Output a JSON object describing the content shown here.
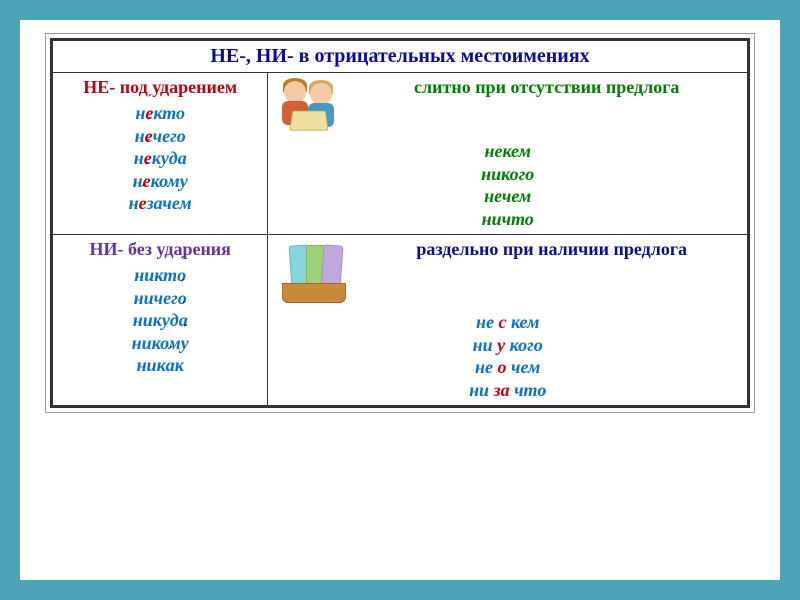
{
  "colors": {
    "page_bg": "#4ba3b5",
    "paper_bg": "#ffffff",
    "border": "#333333",
    "title": "#0b0b9b",
    "red": "#c00010",
    "green": "#008000",
    "purple": "#6a2fa0",
    "blue": "#0b0b9b",
    "ex_blue": "#0b70c7",
    "ex_green": "#008000"
  },
  "title": "НЕ-, НИ- в отрицательных местоимениях",
  "cells": {
    "tl": {
      "header": "НЕ- под ударением",
      "w1": {
        "prefix": "н",
        "stress": "е",
        "rest": "кто"
      },
      "w2": {
        "prefix": "н",
        "stress": "е",
        "rest": "чего"
      },
      "w3": {
        "prefix": "н",
        "stress": "е",
        "rest": "куда"
      },
      "w4": {
        "prefix": "н",
        "stress": "е",
        "rest": "кому"
      },
      "w5": {
        "prefix": "н",
        "stress": "е",
        "rest": "зачем"
      }
    },
    "tr": {
      "header": "слитно при отсутствии предлога",
      "w1": "некем",
      "w2": "никого",
      "w3": "нечем",
      "w4": "ничто"
    },
    "bl": {
      "header": "НИ- без ударения",
      "w1": {
        "pre": "никт",
        "stress": "о",
        "post": ""
      },
      "w2": {
        "pre": "ничег",
        "stress": "о",
        "post": ""
      },
      "w3": {
        "pre": "никуд",
        "stress": "а",
        "post": ""
      },
      "w4": {
        "pre": "ником",
        "stress": "у",
        "post": ""
      },
      "w5": {
        "pre": "ник",
        "stress": "а",
        "post": "к"
      }
    },
    "br": {
      "header": "раздельно при наличии предлога",
      "w1": {
        "a": "не ",
        "p": "с",
        "b": " кем"
      },
      "w2": {
        "a": "ни ",
        "p": "у",
        "b": " кого"
      },
      "w3": {
        "a": "не ",
        "p": "о",
        "b": " чем"
      },
      "w4": {
        "a": "ни ",
        "p": "за",
        "b": " что"
      }
    }
  }
}
